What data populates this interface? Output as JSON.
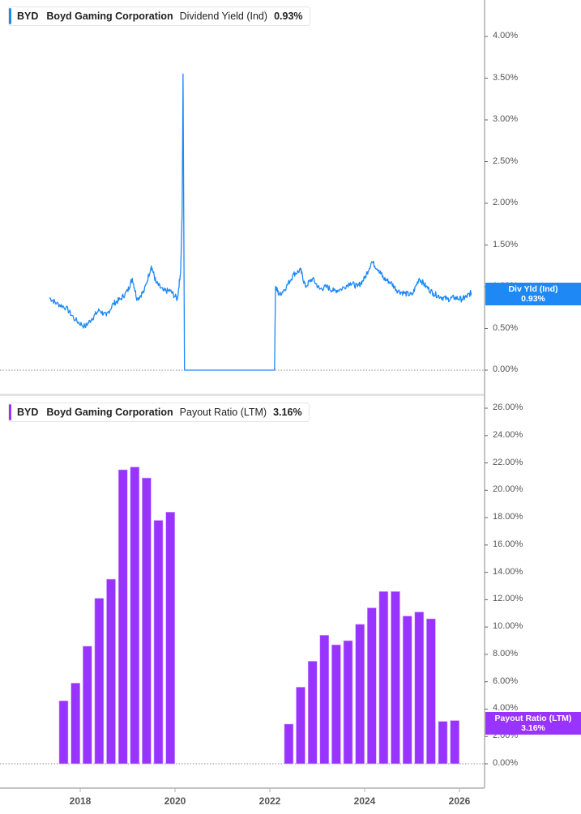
{
  "colors": {
    "yield_line": "#1e88f5",
    "payout_bar": "#9933ff",
    "yield_flag": "#1e88f5",
    "payout_flag": "#9933ff",
    "axis": "#b0b0b0",
    "label": "#555555"
  },
  "top_panel": {
    "legend": {
      "ticker": "BYD",
      "company": "Boyd Gaming Corporation",
      "metric": "Dividend Yield (Ind)",
      "value": "0.93%"
    },
    "flag": {
      "label": "Div Yld (Ind)",
      "value": "0.93%"
    },
    "y_ticks": [
      "4.00%",
      "3.50%",
      "3.00%",
      "2.50%",
      "2.00%",
      "1.50%",
      "1.00%",
      "0.50%",
      "0.00%"
    ]
  },
  "bottom_panel": {
    "legend": {
      "ticker": "BYD",
      "company": "Boyd Gaming Corporation",
      "metric": "Payout Ratio (LTM)",
      "value": "3.16%"
    },
    "flag": {
      "label": "Payout Ratio (LTM)",
      "value": "3.16%"
    },
    "y_ticks": [
      "26.00%",
      "24.00%",
      "22.00%",
      "20.00%",
      "18.00%",
      "16.00%",
      "14.00%",
      "12.00%",
      "10.00%",
      "8.00%",
      "6.00%",
      "4.00%",
      "2.00%",
      "0.00%"
    ]
  },
  "x_axis": {
    "ticks": [
      "2018",
      "2020",
      "2022",
      "2024",
      "2026"
    ]
  },
  "chart_data": [
    {
      "type": "line",
      "title": "BYD Boyd Gaming Corporation Dividend Yield (Ind) 0.93%",
      "xlabel": "",
      "ylabel": "Dividend Yield (Ind)",
      "ylim": [
        0,
        4.2
      ],
      "grid": false,
      "legend_position": "top-left",
      "series": [
        {
          "name": "Dividend Yield (Ind)",
          "x": [
            2017.35,
            2017.5,
            2017.7,
            2017.9,
            2018.1,
            2018.25,
            2018.4,
            2018.55,
            2018.7,
            2018.85,
            2019.0,
            2019.1,
            2019.2,
            2019.35,
            2019.5,
            2019.6,
            2019.75,
            2019.9,
            2020.05,
            2020.12,
            2020.15,
            2020.17,
            2020.2,
            2020.22,
            2020.5,
            2021.0,
            2021.5,
            2022.0,
            2022.1,
            2022.12,
            2022.2,
            2022.35,
            2022.5,
            2022.65,
            2022.75,
            2022.9,
            2023.05,
            2023.2,
            2023.35,
            2023.5,
            2023.7,
            2023.85,
            2024.0,
            2024.15,
            2024.3,
            2024.4,
            2024.55,
            2024.7,
            2024.85,
            2025.0,
            2025.15,
            2025.3,
            2025.45,
            2025.6,
            2025.75,
            2025.9,
            2026.05,
            2026.15,
            2026.25
          ],
          "values": [
            0.87,
            0.8,
            0.75,
            0.6,
            0.52,
            0.62,
            0.72,
            0.65,
            0.8,
            0.85,
            0.95,
            1.1,
            0.85,
            0.95,
            1.25,
            1.05,
            0.95,
            0.95,
            0.85,
            1.2,
            1.9,
            3.55,
            0.0,
            0.0,
            0.0,
            0.0,
            0.0,
            0.0,
            0.0,
            1.0,
            0.9,
            1.0,
            1.15,
            1.2,
            1.0,
            1.1,
            0.97,
            1.0,
            0.95,
            0.97,
            1.05,
            1.0,
            1.1,
            1.3,
            1.2,
            1.1,
            1.05,
            0.95,
            0.92,
            0.9,
            1.1,
            1.0,
            0.92,
            0.88,
            0.85,
            0.87,
            0.85,
            0.88,
            0.93
          ]
        }
      ]
    },
    {
      "type": "bar",
      "title": "BYD Boyd Gaming Corporation Payout Ratio (LTM) 3.16%",
      "xlabel": "",
      "ylabel": "Payout Ratio (LTM)",
      "ylim": [
        0,
        26
      ],
      "grid": false,
      "legend_position": "top-left",
      "categories": [
        "Q3 2017",
        "Q4 2017",
        "Q1 2018",
        "Q2 2018",
        "Q3 2018",
        "Q4 2018",
        "Q1 2019",
        "Q2 2019",
        "Q3 2019",
        "Q4 2019",
        "Q2 2022",
        "Q3 2022",
        "Q4 2022",
        "Q1 2023",
        "Q2 2023",
        "Q3 2023",
        "Q4 2023",
        "Q1 2024",
        "Q2 2024",
        "Q3 2024",
        "Q4 2024",
        "Q1 2025",
        "Q2 2025",
        "Q3 2025",
        "Q4 2025"
      ],
      "series": [
        {
          "name": "Payout Ratio (LTM)",
          "x": [
            2017.65,
            2017.9,
            2018.15,
            2018.4,
            2018.65,
            2018.9,
            2019.15,
            2019.4,
            2019.65,
            2019.9,
            2022.4,
            2022.65,
            2022.9,
            2023.15,
            2023.4,
            2023.65,
            2023.9,
            2024.15,
            2024.4,
            2024.65,
            2024.9,
            2025.15,
            2025.4,
            2025.65,
            2025.9
          ],
          "values": [
            4.6,
            5.9,
            8.6,
            12.1,
            13.5,
            21.5,
            21.7,
            20.9,
            17.8,
            18.4,
            2.9,
            5.6,
            7.5,
            9.4,
            8.7,
            9.0,
            10.2,
            11.4,
            12.6,
            12.6,
            10.8,
            11.1,
            10.6,
            3.1,
            3.16
          ]
        }
      ]
    }
  ]
}
